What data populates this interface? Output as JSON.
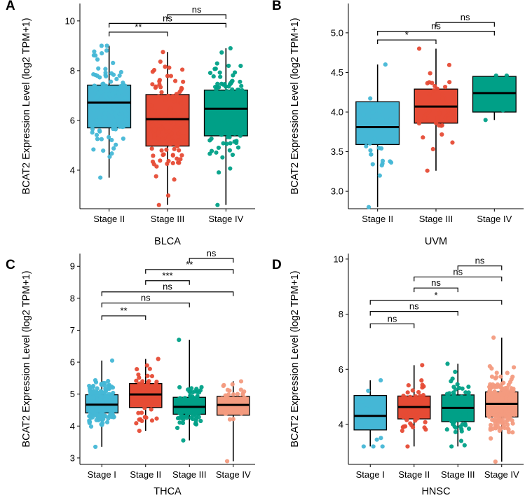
{
  "colors": {
    "stage_i": "#45b7d6",
    "stage_ii": "#45b7d6",
    "stage_iii": "#e64b35",
    "stage_iv": "#00a087",
    "stage_iv_light": "#f39b7f"
  },
  "chart_data": [
    {
      "type": "box",
      "panel": "A",
      "title": "",
      "xlabel": "BLCA",
      "ylabel": "BCAT2 Expression Level (log2 TPM+1)",
      "ylim": [
        2.45,
        10.7
      ],
      "yticks": [
        4,
        6,
        8,
        10
      ],
      "categories": [
        "Stage II",
        "Stage III",
        "Stage IV"
      ],
      "series": [
        {
          "name": "Stage II",
          "color": "#45b7d6",
          "q1": 5.7,
          "median": 6.72,
          "q3": 7.42,
          "whisker_low": 3.7,
          "whisker_high": 9.0,
          "n": 120,
          "seed": 11
        },
        {
          "name": "Stage III",
          "color": "#e64b35",
          "q1": 4.97,
          "median": 6.05,
          "q3": 7.04,
          "whisker_low": 2.6,
          "whisker_high": 8.75,
          "n": 130,
          "seed": 23
        },
        {
          "name": "Stage IV",
          "color": "#00a087",
          "q1": 5.38,
          "median": 6.47,
          "q3": 7.22,
          "whisker_low": 2.6,
          "whisker_high": 8.9,
          "n": 130,
          "seed": 37
        }
      ],
      "comparisons": [
        {
          "from": 0,
          "to": 1,
          "label": "**",
          "y": 9.55
        },
        {
          "from": 0,
          "to": 2,
          "label": "ns",
          "y": 9.9
        },
        {
          "from": 1,
          "to": 2,
          "label": "ns",
          "y": 10.25
        }
      ]
    },
    {
      "type": "box",
      "panel": "B",
      "title": "",
      "xlabel": "UVM",
      "ylabel": "BCAT2 Expression Level (log2 TPM+1)",
      "ylim": [
        2.78,
        5.37
      ],
      "yticks": [
        3.0,
        3.5,
        4.0,
        4.5,
        5.0
      ],
      "tick_decimals": 1,
      "categories": [
        "Stage II",
        "Stage III",
        "Stage IV"
      ],
      "series": [
        {
          "name": "Stage II",
          "color": "#45b7d6",
          "q1": 3.59,
          "median": 3.81,
          "q3": 4.13,
          "whisker_low": 2.8,
          "whisker_high": 4.6,
          "n": 34,
          "seed": 5
        },
        {
          "name": "Stage III",
          "color": "#e64b35",
          "q1": 3.86,
          "median": 4.07,
          "q3": 4.29,
          "whisker_low": 3.26,
          "whisker_high": 4.8,
          "n": 42,
          "seed": 19
        },
        {
          "name": "Stage IV",
          "color": "#00a087",
          "q1": 4.0,
          "median": 4.24,
          "q3": 4.45,
          "whisker_low": 3.9,
          "whisker_high": 4.46,
          "n": 4,
          "seed": 3
        }
      ],
      "comparisons": [
        {
          "from": 0,
          "to": 1,
          "label": "*",
          "y": 4.91
        },
        {
          "from": 0,
          "to": 2,
          "label": "ns",
          "y": 5.02
        },
        {
          "from": 1,
          "to": 2,
          "label": "ns",
          "y": 5.13
        }
      ]
    },
    {
      "type": "box",
      "panel": "C",
      "title": "",
      "xlabel": "THCA",
      "ylabel": "BCAT2 Expression Level (log2 TPM+1)",
      "ylim": [
        2.8,
        9.4
      ],
      "yticks": [
        3,
        4,
        5,
        6,
        7,
        8,
        9
      ],
      "categories": [
        "Stage I",
        "Stage II",
        "Stage III",
        "Stage IV"
      ],
      "series": [
        {
          "name": "Stage I",
          "color": "#45b7d6",
          "q1": 4.41,
          "median": 4.67,
          "q3": 4.98,
          "whisker_low": 3.35,
          "whisker_high": 6.05,
          "n": 200,
          "seed": 29
        },
        {
          "name": "Stage II",
          "color": "#e64b35",
          "q1": 4.58,
          "median": 4.99,
          "q3": 5.33,
          "whisker_low": 3.85,
          "whisker_high": 6.1,
          "n": 60,
          "seed": 41
        },
        {
          "name": "Stage III",
          "color": "#00a087",
          "q1": 4.37,
          "median": 4.6,
          "q3": 4.9,
          "whisker_low": 3.55,
          "whisker_high": 6.7,
          "n": 110,
          "seed": 53
        },
        {
          "name": "Stage IV",
          "color": "#f39b7f",
          "q1": 4.34,
          "median": 4.66,
          "q3": 4.93,
          "whisker_low": 2.9,
          "whisker_high": 5.4,
          "n": 45,
          "seed": 61
        }
      ],
      "comparisons": [
        {
          "from": 0,
          "to": 1,
          "label": "**",
          "y": 7.45
        },
        {
          "from": 0,
          "to": 2,
          "label": "ns",
          "y": 7.85
        },
        {
          "from": 0,
          "to": 3,
          "label": "ns",
          "y": 8.2
        },
        {
          "from": 1,
          "to": 2,
          "label": "***",
          "y": 8.55
        },
        {
          "from": 1,
          "to": 3,
          "label": "**",
          "y": 8.9
        },
        {
          "from": 2,
          "to": 3,
          "label": "ns",
          "y": 9.25
        }
      ]
    },
    {
      "type": "box",
      "panel": "D",
      "title": "",
      "xlabel": "HNSC",
      "ylabel": "BCAT2 Expression Level (log2 TPM+1)",
      "ylim": [
        2.55,
        10.2
      ],
      "yticks": [
        4,
        6,
        8,
        10
      ],
      "categories": [
        "Stage I",
        "Stage II",
        "Stage III",
        "Stage IV"
      ],
      "series": [
        {
          "name": "Stage I",
          "color": "#45b7d6",
          "q1": 3.8,
          "median": 4.31,
          "q3": 5.05,
          "whisker_low": 3.2,
          "whisker_high": 5.6,
          "n": 24,
          "seed": 7
        },
        {
          "name": "Stage II",
          "color": "#e64b35",
          "q1": 4.2,
          "median": 4.63,
          "q3": 5.03,
          "whisker_low": 3.2,
          "whisker_high": 6.15,
          "n": 70,
          "seed": 17
        },
        {
          "name": "Stage III",
          "color": "#00a087",
          "q1": 4.1,
          "median": 4.6,
          "q3": 5.07,
          "whisker_low": 3.2,
          "whisker_high": 6.2,
          "n": 90,
          "seed": 31
        },
        {
          "name": "Stage IV",
          "color": "#f39b7f",
          "q1": 4.27,
          "median": 4.75,
          "q3": 5.18,
          "whisker_low": 2.65,
          "whisker_high": 7.15,
          "n": 260,
          "seed": 43
        }
      ],
      "comparisons": [
        {
          "from": 0,
          "to": 1,
          "label": "ns",
          "y": 7.65
        },
        {
          "from": 0,
          "to": 2,
          "label": "ns",
          "y": 8.1
        },
        {
          "from": 0,
          "to": 3,
          "label": "*",
          "y": 8.5
        },
        {
          "from": 1,
          "to": 2,
          "label": "ns",
          "y": 8.95
        },
        {
          "from": 1,
          "to": 3,
          "label": "ns",
          "y": 9.35
        },
        {
          "from": 2,
          "to": 3,
          "label": "ns",
          "y": 9.75
        }
      ]
    }
  ]
}
